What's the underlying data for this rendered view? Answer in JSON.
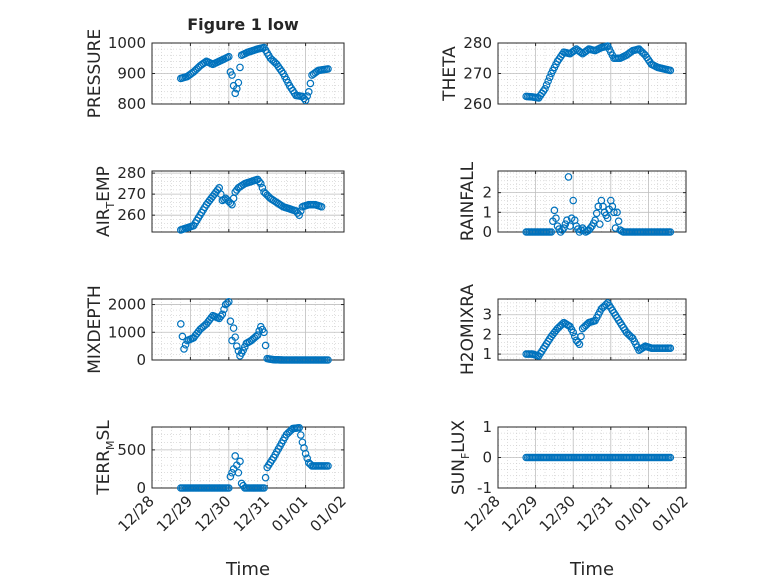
{
  "figure": {
    "title": "Figure 1 low",
    "marker_color": "#0072BD",
    "axis_color": "#262626",
    "grid_color": "#BFBFBF"
  },
  "chart_data": [
    {
      "type": "scatter",
      "ylabel": "PRESSURE",
      "xlabel": "",
      "xlim": [
        "12/28",
        "01/02"
      ],
      "ylim": [
        800,
        1000
      ],
      "xticks": [],
      "yticks": [
        800,
        900,
        1000
      ],
      "ytick_labels": [
        "800",
        "900",
        "1000"
      ],
      "grid": true,
      "points": [
        [
          "12/28 18:00",
          884
        ],
        [
          "12/28 22:00",
          890
        ],
        [
          "12/29 02:00",
          905
        ],
        [
          "12/29 06:00",
          925
        ],
        [
          "12/29 10:00",
          940
        ],
        [
          "12/29 14:00",
          930
        ],
        [
          "12/29 18:00",
          940
        ],
        [
          "12/29 22:00",
          950
        ],
        [
          "12/30 00:00",
          955
        ],
        [
          "12/30 01:00",
          905
        ],
        [
          "12/30 02:00",
          895
        ],
        [
          "12/30 03:00",
          860
        ],
        [
          "12/30 04:00",
          835
        ],
        [
          "12/30 05:00",
          850
        ],
        [
          "12/30 06:00",
          870
        ],
        [
          "12/30 07:00",
          920
        ],
        [
          "12/30 08:00",
          960
        ],
        [
          "12/30 12:00",
          970
        ],
        [
          "12/30 18:00",
          980
        ],
        [
          "12/30 22:00",
          985
        ],
        [
          "12/31 02:00",
          950
        ],
        [
          "12/31 06:00",
          930
        ],
        [
          "12/31 10:00",
          900
        ],
        [
          "12/31 14:00",
          860
        ],
        [
          "12/31 18:00",
          828
        ],
        [
          "12/31 22:00",
          825
        ],
        [
          "01/01 00:00",
          812
        ],
        [
          "01/01 02:00",
          840
        ],
        [
          "01/01 04:00",
          895
        ],
        [
          "01/01 08:00",
          910
        ],
        [
          "01/01 14:00",
          915
        ]
      ]
    },
    {
      "type": "scatter",
      "ylabel": "THETA",
      "xlabel": "",
      "xlim": [
        "12/28",
        "01/02"
      ],
      "ylim": [
        260,
        280
      ],
      "xticks": [],
      "yticks": [
        260,
        270,
        280
      ],
      "ytick_labels": [
        "260",
        "270",
        "280"
      ],
      "grid": true,
      "points": [
        [
          "12/28 18:00",
          262.5
        ],
        [
          "12/28 22:00",
          262.3
        ],
        [
          "12/29 02:00",
          262
        ],
        [
          "12/29 06:00",
          265
        ],
        [
          "12/29 10:00",
          270
        ],
        [
          "12/29 14:00",
          274
        ],
        [
          "12/29 18:00",
          277
        ],
        [
          "12/29 22:00",
          276.5
        ],
        [
          "12/30 02:00",
          278
        ],
        [
          "12/30 06:00",
          276.5
        ],
        [
          "12/30 10:00",
          278
        ],
        [
          "12/30 14:00",
          277.5
        ],
        [
          "12/30 18:00",
          278.5
        ],
        [
          "12/30 22:00",
          279
        ],
        [
          "12/31 02:00",
          275
        ],
        [
          "12/31 06:00",
          275
        ],
        [
          "12/31 10:00",
          276
        ],
        [
          "12/31 14:00",
          277.5
        ],
        [
          "12/31 18:00",
          278
        ],
        [
          "12/31 22:00",
          276
        ],
        [
          "01/01 02:00",
          273
        ],
        [
          "01/01 06:00",
          272
        ],
        [
          "01/01 10:00",
          271.5
        ],
        [
          "01/01 14:00",
          271
        ]
      ]
    },
    {
      "type": "scatter",
      "ylabel": "AIR_TEMP",
      "xlabel": "",
      "xlim": [
        "12/28",
        "01/02"
      ],
      "ylim": [
        252,
        281
      ],
      "xticks": [],
      "yticks": [
        260,
        270,
        280
      ],
      "ytick_labels": [
        "260",
        "270",
        "280"
      ],
      "grid": true,
      "points": [
        [
          "12/28 18:00",
          253
        ],
        [
          "12/28 22:00",
          254
        ],
        [
          "12/29 02:00",
          255
        ],
        [
          "12/29 06:00",
          260
        ],
        [
          "12/29 10:00",
          265
        ],
        [
          "12/29 14:00",
          269
        ],
        [
          "12/29 18:00",
          273
        ],
        [
          "12/29 20:00",
          267
        ],
        [
          "12/29 22:00",
          268
        ],
        [
          "12/30 02:00",
          265
        ],
        [
          "12/30 04:00",
          271
        ],
        [
          "12/30 06:00",
          273
        ],
        [
          "12/30 10:00",
          275
        ],
        [
          "12/30 14:00",
          276
        ],
        [
          "12/30 18:00",
          277
        ],
        [
          "12/30 20:00",
          275
        ],
        [
          "12/30 22:00",
          271
        ],
        [
          "12/31 02:00",
          268
        ],
        [
          "12/31 06:00",
          266
        ],
        [
          "12/31 10:00",
          264
        ],
        [
          "12/31 14:00",
          263
        ],
        [
          "12/31 18:00",
          262
        ],
        [
          "12/31 20:00",
          260
        ],
        [
          "12/31 22:00",
          264
        ],
        [
          "01/01 02:00",
          265
        ],
        [
          "01/01 06:00",
          265
        ],
        [
          "01/01 10:00",
          264
        ]
      ]
    },
    {
      "type": "scatter",
      "ylabel": "RAINFALL",
      "xlabel": "",
      "xlim": [
        "12/28",
        "01/02"
      ],
      "ylim": [
        0,
        3.1
      ],
      "xticks": [],
      "yticks": [
        0,
        1,
        2
      ],
      "ytick_labels": [
        "0",
        "1",
        "2"
      ],
      "grid": true,
      "points": [
        [
          "12/28 18:00",
          0
        ],
        [
          "12/29 00:00",
          0
        ],
        [
          "12/29 06:00",
          0
        ],
        [
          "12/29 10:00",
          0
        ],
        [
          "12/29 12:00",
          1.1
        ],
        [
          "12/29 13:00",
          0.7
        ],
        [
          "12/29 14:00",
          0.3
        ],
        [
          "12/29 16:00",
          0
        ],
        [
          "12/29 18:00",
          0.2
        ],
        [
          "12/29 20:00",
          0.6
        ],
        [
          "12/29 21:00",
          2.8
        ],
        [
          "12/29 22:00",
          0.3
        ],
        [
          "12/29 23:00",
          0.7
        ],
        [
          "12/30 00:00",
          1.6
        ],
        [
          "12/30 01:00",
          0.6
        ],
        [
          "12/30 02:00",
          0.3
        ],
        [
          "12/30 04:00",
          0
        ],
        [
          "12/30 06:00",
          0.2
        ],
        [
          "12/30 08:00",
          0
        ],
        [
          "12/30 10:00",
          0.1
        ],
        [
          "12/30 12:00",
          0.3
        ],
        [
          "12/30 14:00",
          0.6
        ],
        [
          "12/30 16:00",
          1.3
        ],
        [
          "12/30 17:00",
          0.4
        ],
        [
          "12/30 18:00",
          1.6
        ],
        [
          "12/30 20:00",
          1
        ],
        [
          "12/30 22:00",
          0.7
        ],
        [
          "12/31 00:00",
          1.6
        ],
        [
          "12/31 02:00",
          1
        ],
        [
          "12/31 03:00",
          0.2
        ],
        [
          "12/31 04:00",
          1
        ],
        [
          "12/31 06:00",
          0.1
        ],
        [
          "12/31 08:00",
          0
        ],
        [
          "12/31 14:00",
          0
        ],
        [
          "12/31 20:00",
          0
        ],
        [
          "01/01 02:00",
          0
        ],
        [
          "01/01 08:00",
          0
        ],
        [
          "01/01 14:00",
          0
        ]
      ]
    },
    {
      "type": "scatter",
      "ylabel": "MIXDEPTH",
      "xlabel": "",
      "xlim": [
        "12/28",
        "01/02"
      ],
      "ylim": [
        0,
        2200
      ],
      "xticks": [],
      "yticks": [
        0,
        1000,
        2000
      ],
      "ytick_labels": [
        "0",
        "1000",
        "2000"
      ],
      "grid": true,
      "points": [
        [
          "12/28 18:00",
          1300
        ],
        [
          "12/28 20:00",
          400
        ],
        [
          "12/28 22:00",
          700
        ],
        [
          "12/29 02:00",
          800
        ],
        [
          "12/29 06:00",
          1100
        ],
        [
          "12/29 10:00",
          1300
        ],
        [
          "12/29 14:00",
          1600
        ],
        [
          "12/29 18:00",
          1500
        ],
        [
          "12/29 20:00",
          1650
        ],
        [
          "12/29 22:00",
          2000
        ],
        [
          "12/30 00:00",
          2100
        ],
        [
          "12/30 02:00",
          700
        ],
        [
          "12/30 03:00",
          1150
        ],
        [
          "12/30 05:00",
          500
        ],
        [
          "12/30 07:00",
          150
        ],
        [
          "12/30 09:00",
          350
        ],
        [
          "12/30 11:00",
          600
        ],
        [
          "12/30 14:00",
          700
        ],
        [
          "12/30 18:00",
          900
        ],
        [
          "12/30 20:00",
          1200
        ],
        [
          "12/30 22:00",
          1000
        ],
        [
          "12/31 00:00",
          50
        ],
        [
          "12/31 04:00",
          10
        ],
        [
          "12/31 10:00",
          0
        ],
        [
          "12/31 16:00",
          0
        ],
        [
          "12/31 22:00",
          0
        ],
        [
          "01/01 04:00",
          0
        ],
        [
          "01/01 10:00",
          0
        ],
        [
          "01/01 14:00",
          0
        ]
      ]
    },
    {
      "type": "scatter",
      "ylabel": "H2OMIXRA",
      "xlabel": "",
      "xlim": [
        "12/28",
        "01/02"
      ],
      "ylim": [
        0.7,
        3.8
      ],
      "xticks": [],
      "yticks": [
        1,
        2,
        3
      ],
      "ytick_labels": [
        "1",
        "2",
        "3"
      ],
      "grid": true,
      "points": [
        [
          "12/28 18:00",
          1
        ],
        [
          "12/28 22:00",
          1
        ],
        [
          "12/29 02:00",
          0.9
        ],
        [
          "12/29 06:00",
          1.4
        ],
        [
          "12/29 10:00",
          1.9
        ],
        [
          "12/29 14:00",
          2.3
        ],
        [
          "12/29 18:00",
          2.6
        ],
        [
          "12/29 22:00",
          2.4
        ],
        [
          "12/30 00:00",
          2.1
        ],
        [
          "12/30 02:00",
          1.7
        ],
        [
          "12/30 04:00",
          1.5
        ],
        [
          "12/30 06:00",
          2.3
        ],
        [
          "12/30 10:00",
          2.6
        ],
        [
          "12/30 14:00",
          2.7
        ],
        [
          "12/30 18:00",
          3.3
        ],
        [
          "12/30 22:00",
          3.6
        ],
        [
          "12/31 02:00",
          3.1
        ],
        [
          "12/31 06:00",
          2.6
        ],
        [
          "12/31 10:00",
          2.1
        ],
        [
          "12/31 14:00",
          1.8
        ],
        [
          "12/31 18:00",
          1.2
        ],
        [
          "12/31 22:00",
          1.4
        ],
        [
          "01/01 02:00",
          1.3
        ],
        [
          "01/01 08:00",
          1.3
        ],
        [
          "01/01 14:00",
          1.3
        ]
      ]
    },
    {
      "type": "scatter",
      "ylabel": "TERR_MSL",
      "xlabel": "Time",
      "xlim": [
        "12/28",
        "01/02"
      ],
      "ylim": [
        0,
        800
      ],
      "xticks": [
        "12/28",
        "12/29",
        "12/30",
        "12/31",
        "01/01",
        "01/02"
      ],
      "yticks": [
        0,
        500
      ],
      "ytick_labels": [
        "0",
        "500"
      ],
      "grid": true,
      "points": [
        [
          "12/28 18:00",
          0
        ],
        [
          "12/29 00:00",
          0
        ],
        [
          "12/29 06:00",
          0
        ],
        [
          "12/29 12:00",
          0
        ],
        [
          "12/29 18:00",
          0
        ],
        [
          "12/30 00:00",
          0
        ],
        [
          "12/30 01:00",
          150
        ],
        [
          "12/30 03:00",
          250
        ],
        [
          "12/30 04:00",
          420
        ],
        [
          "12/30 05:00",
          300
        ],
        [
          "12/30 06:00",
          200
        ],
        [
          "12/30 07:00",
          350
        ],
        [
          "12/30 08:00",
          60
        ],
        [
          "12/30 10:00",
          0
        ],
        [
          "12/30 16:00",
          0
        ],
        [
          "12/30 22:00",
          0
        ],
        [
          "12/31 00:00",
          270
        ],
        [
          "12/31 04:00",
          400
        ],
        [
          "12/31 08:00",
          550
        ],
        [
          "12/31 12:00",
          700
        ],
        [
          "12/31 16:00",
          780
        ],
        [
          "12/31 20:00",
          790
        ],
        [
          "12/31 22:00",
          600
        ],
        [
          "01/01 00:00",
          450
        ],
        [
          "01/01 02:00",
          330
        ],
        [
          "01/01 04:00",
          290
        ],
        [
          "01/01 10:00",
          290
        ],
        [
          "01/01 14:00",
          290
        ]
      ]
    },
    {
      "type": "scatter",
      "ylabel": "SUN_FLUX",
      "xlabel": "Time",
      "xlim": [
        "12/28",
        "01/02"
      ],
      "ylim": [
        -1,
        1
      ],
      "xticks": [
        "12/28",
        "12/29",
        "12/30",
        "12/31",
        "01/01",
        "01/02"
      ],
      "yticks": [
        -1,
        0,
        1
      ],
      "ytick_labels": [
        "-1",
        "0",
        "1"
      ],
      "grid": true,
      "points": [
        [
          "12/28 18:00",
          0
        ],
        [
          "12/29 06:00",
          0
        ],
        [
          "12/29 18:00",
          0
        ],
        [
          "12/30 06:00",
          0
        ],
        [
          "12/30 18:00",
          0
        ],
        [
          "12/31 06:00",
          0
        ],
        [
          "12/31 18:00",
          0
        ],
        [
          "01/01 06:00",
          0
        ],
        [
          "01/01 14:00",
          0
        ]
      ]
    }
  ]
}
